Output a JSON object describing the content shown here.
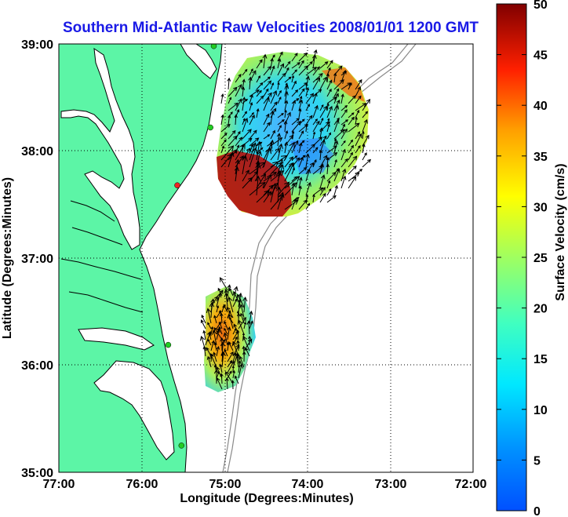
{
  "title": "Southern Mid-Atlantic Raw Velocities 2008/01/01 1200 GMT",
  "x_axis": {
    "label": "Longitude (Degrees:Minutes)",
    "ticks": [
      "77:00",
      "76:00",
      "75:00",
      "74:00",
      "73:00",
      "72:00"
    ]
  },
  "y_axis": {
    "label": "Latitude (Degrees:Minutes)",
    "ticks": [
      "39:00",
      "38:00",
      "37:00",
      "36:00",
      "35:00"
    ]
  },
  "colorbar": {
    "label": "Surface Velocity (cm/s)",
    "ticks": [
      "50",
      "45",
      "40",
      "35",
      "30",
      "25",
      "20",
      "15",
      "10",
      "5",
      "0"
    ],
    "range": [
      0,
      50
    ],
    "colormap": "jet"
  },
  "colors": {
    "land": "#5cf5a6",
    "coastline": "#000000",
    "isobath": "#8a8a8a",
    "station": "#22cc22",
    "station_red": "#ee2222",
    "title": "#1a1ae6"
  },
  "stations": [
    {
      "lon": -75.13,
      "lat": 38.98,
      "status": "active"
    },
    {
      "lon": -75.17,
      "lat": 38.22,
      "status": "active"
    },
    {
      "lon": -75.57,
      "lat": 37.68,
      "status": "inactive"
    },
    {
      "lon": -75.68,
      "lat": 36.19,
      "status": "active"
    },
    {
      "lon": -75.52,
      "lat": 35.25,
      "status": "active"
    }
  ]
}
